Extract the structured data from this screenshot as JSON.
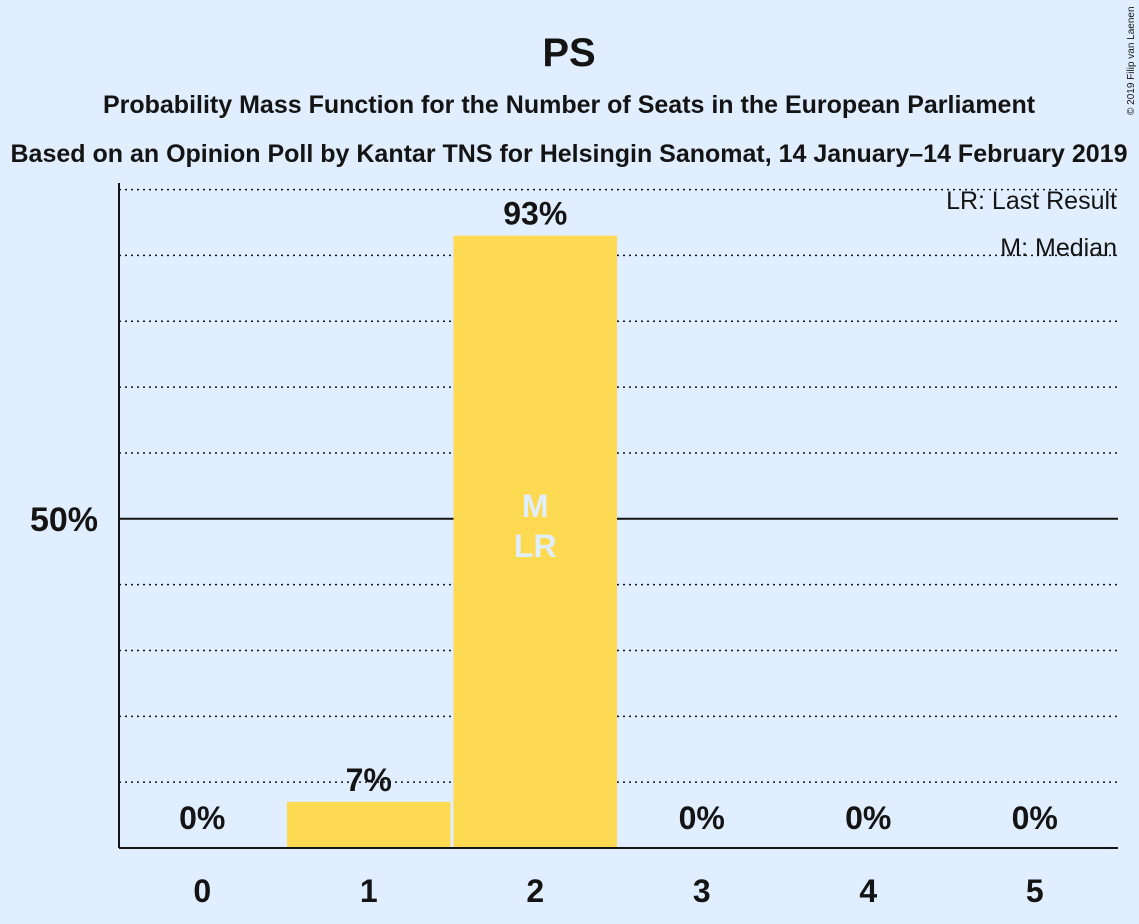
{
  "chart_data": {
    "type": "bar",
    "title": "PS",
    "subtitle": "Probability Mass Function for the Number of Seats in the European Parliament",
    "subtitle2": "Based on an Opinion Poll by Kantar TNS for Helsingin Sanomat, 14 January–14 February 2019",
    "copyright": "© 2019 Filip van Laenen",
    "categories": [
      "0",
      "1",
      "2",
      "3",
      "4",
      "5"
    ],
    "values": [
      0,
      7,
      93,
      0,
      0,
      0
    ],
    "value_labels": [
      "0%",
      "7%",
      "93%",
      "0%",
      "0%",
      "0%"
    ],
    "ylim": [
      0,
      101
    ],
    "y_tick": {
      "value": 50,
      "label": "50%"
    },
    "gridlines_dotted_every": 10,
    "median_category": "2",
    "last_result_category": "2",
    "median_marker": "M",
    "last_result_marker": "LR",
    "legend": [
      "LR: Last Result",
      "M: Median"
    ],
    "legend_position": "top-right",
    "bar_color": "#fdda52",
    "background_color": "#e0eeff",
    "text_color": "#141414"
  }
}
